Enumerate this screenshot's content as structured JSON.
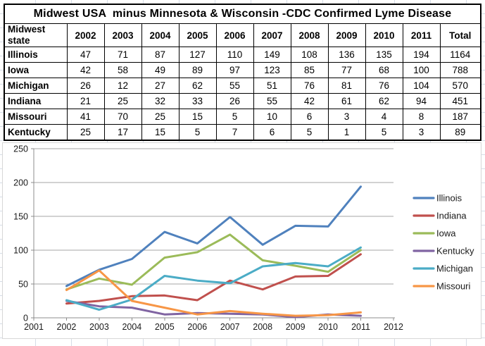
{
  "table": {
    "title": "Midwest USA  minus Minnesota & Wisconsin -CDC Confirmed Lyme Disease",
    "corner_header": "Midwest state",
    "year_headers": [
      "2002",
      "2003",
      "2004",
      "2005",
      "2006",
      "2007",
      "2008",
      "2009",
      "2010",
      "2011"
    ],
    "total_header": "Total",
    "rows": [
      {
        "state": "Illinois",
        "values": [
          47,
          71,
          87,
          127,
          110,
          149,
          108,
          136,
          135,
          194
        ],
        "total": 1164
      },
      {
        "state": "Iowa",
        "values": [
          42,
          58,
          49,
          89,
          97,
          123,
          85,
          77,
          68,
          100
        ],
        "total": 788
      },
      {
        "state": "Michigan",
        "values": [
          26,
          12,
          27,
          62,
          55,
          51,
          76,
          81,
          76,
          104
        ],
        "total": 570
      },
      {
        "state": "Indiana",
        "values": [
          21,
          25,
          32,
          33,
          26,
          55,
          42,
          61,
          62,
          94
        ],
        "total": 451
      },
      {
        "state": "Missouri",
        "values": [
          41,
          70,
          25,
          15,
          5,
          10,
          6,
          3,
          4,
          8
        ],
        "total": 187
      },
      {
        "state": "Kentucky",
        "values": [
          25,
          17,
          15,
          5,
          7,
          6,
          5,
          1,
          5,
          3
        ],
        "total": 89
      }
    ]
  },
  "chart_data": {
    "type": "line",
    "title": "",
    "xlabel": "",
    "ylabel": "",
    "x": [
      2002,
      2003,
      2004,
      2005,
      2006,
      2007,
      2008,
      2009,
      2010,
      2011
    ],
    "series": [
      {
        "name": "Illinois",
        "color": "#4F81BD",
        "values": [
          47,
          71,
          87,
          127,
          110,
          149,
          108,
          136,
          135,
          194
        ]
      },
      {
        "name": "Indiana",
        "color": "#C0504D",
        "values": [
          21,
          25,
          32,
          33,
          26,
          55,
          42,
          61,
          62,
          94
        ]
      },
      {
        "name": "Iowa",
        "color": "#9BBB59",
        "values": [
          42,
          58,
          49,
          89,
          97,
          123,
          85,
          77,
          68,
          100
        ]
      },
      {
        "name": "Kentucky",
        "color": "#8064A2",
        "values": [
          25,
          17,
          15,
          5,
          7,
          6,
          5,
          1,
          5,
          3
        ]
      },
      {
        "name": "Michigan",
        "color": "#4BACC6",
        "values": [
          26,
          12,
          27,
          62,
          55,
          51,
          76,
          81,
          76,
          104
        ]
      },
      {
        "name": "Missouri",
        "color": "#F79646",
        "values": [
          41,
          70,
          25,
          15,
          5,
          10,
          6,
          3,
          4,
          8
        ]
      }
    ],
    "xlim": [
      2001,
      2012
    ],
    "ylim": [
      0,
      250
    ],
    "x_ticks": [
      2001,
      2002,
      2003,
      2004,
      2005,
      2006,
      2007,
      2008,
      2009,
      2010,
      2011,
      2012
    ],
    "y_ticks": [
      0,
      50,
      100,
      150,
      200,
      250
    ],
    "grid": true,
    "legend_position": "right"
  },
  "colors": {
    "grid_line": "#a6a6a6",
    "axis_line": "#8c8c8c",
    "tick_text": "#1a1a1a",
    "legend_text": "#1a1a1a",
    "chart_border": "#d7d7d7",
    "sheet_grid": "#d6dde7",
    "table_border": "#000000"
  }
}
